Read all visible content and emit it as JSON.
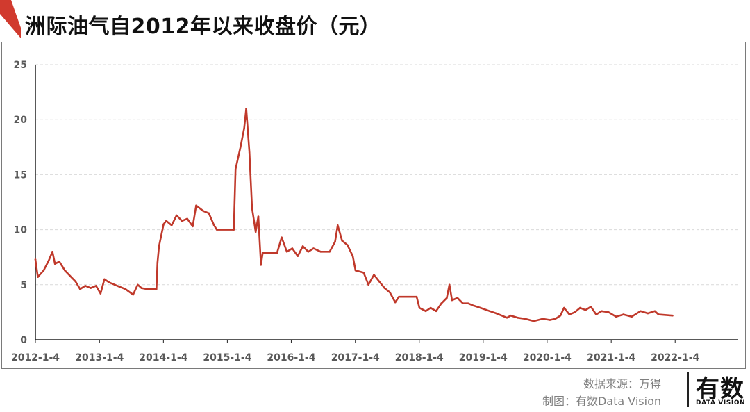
{
  "title": "洲际油气自2012年以来收盘价（元）",
  "footer": {
    "source": "数据来源：万得",
    "credit": "制图：有数Data Vision"
  },
  "logo": {
    "main": "有数",
    "sub": "DATA VISION"
  },
  "colors": {
    "line": "#c0392b",
    "accent": "#d13a2e",
    "grid": "#d9d9d9",
    "axis": "#222222",
    "tick_text": "#595959"
  },
  "chart_data": {
    "type": "line",
    "title": "洲际油气自2012年以来收盘价（元）",
    "xlabel": "",
    "ylabel": "",
    "ylim": [
      0,
      25
    ],
    "yticks": [
      0,
      5,
      10,
      15,
      20,
      25
    ],
    "xlim": [
      "2012-01-04",
      "2022-12-30"
    ],
    "xticks": [
      "2012-1-4",
      "2013-1-4",
      "2014-1-4",
      "2015-1-4",
      "2016-1-4",
      "2017-1-4",
      "2018-1-4",
      "2019-1-4",
      "2020-1-4",
      "2021-1-4",
      "2022-1-4"
    ],
    "grid": "horizontal dashed",
    "series": [
      {
        "values": [
          [
            "2012-01-04",
            7.3
          ],
          [
            "2012-01-18",
            5.7
          ],
          [
            "2012-02-20",
            6.3
          ],
          [
            "2012-03-20",
            7.2
          ],
          [
            "2012-04-10",
            8.0
          ],
          [
            "2012-04-25",
            6.9
          ],
          [
            "2012-05-20",
            7.1
          ],
          [
            "2012-06-20",
            6.3
          ],
          [
            "2012-07-20",
            5.8
          ],
          [
            "2012-08-20",
            5.3
          ],
          [
            "2012-09-15",
            4.6
          ],
          [
            "2012-10-15",
            4.9
          ],
          [
            "2012-11-15",
            4.7
          ],
          [
            "2012-12-15",
            4.9
          ],
          [
            "2013-01-10",
            4.2
          ],
          [
            "2013-02-01",
            5.5
          ],
          [
            "2013-03-01",
            5.2
          ],
          [
            "2013-04-01",
            5.0
          ],
          [
            "2013-05-01",
            4.8
          ],
          [
            "2013-06-01",
            4.6
          ],
          [
            "2013-07-15",
            4.1
          ],
          [
            "2013-08-10",
            5.0
          ],
          [
            "2013-09-01",
            4.7
          ],
          [
            "2013-10-01",
            4.6
          ],
          [
            "2013-11-25",
            4.6
          ],
          [
            "2013-12-01",
            7.0
          ],
          [
            "2013-12-10",
            8.5
          ],
          [
            "2014-01-05",
            10.5
          ],
          [
            "2014-01-20",
            10.8
          ],
          [
            "2014-02-20",
            10.4
          ],
          [
            "2014-03-20",
            11.3
          ],
          [
            "2014-04-20",
            10.8
          ],
          [
            "2014-05-20",
            11.0
          ],
          [
            "2014-06-20",
            10.3
          ],
          [
            "2014-07-10",
            12.2
          ],
          [
            "2014-08-20",
            11.7
          ],
          [
            "2014-09-20",
            11.5
          ],
          [
            "2014-10-20",
            10.4
          ],
          [
            "2014-11-05",
            10.0
          ],
          [
            "2015-02-10",
            10.0
          ],
          [
            "2015-02-20",
            15.5
          ],
          [
            "2015-03-20",
            17.5
          ],
          [
            "2015-04-10",
            19.2
          ],
          [
            "2015-04-22",
            21.0
          ],
          [
            "2015-05-10",
            17.0
          ],
          [
            "2015-05-25",
            12.0
          ],
          [
            "2015-06-15",
            9.8
          ],
          [
            "2015-06-30",
            11.2
          ],
          [
            "2015-07-15",
            6.8
          ],
          [
            "2015-07-25",
            7.9
          ],
          [
            "2015-10-15",
            7.9
          ],
          [
            "2015-11-10",
            9.3
          ],
          [
            "2015-12-10",
            8.0
          ],
          [
            "2016-01-10",
            8.3
          ],
          [
            "2016-02-10",
            7.6
          ],
          [
            "2016-03-10",
            8.5
          ],
          [
            "2016-04-10",
            8.0
          ],
          [
            "2016-05-10",
            8.3
          ],
          [
            "2016-06-20",
            8.0
          ],
          [
            "2016-08-10",
            8.0
          ],
          [
            "2016-09-10",
            8.9
          ],
          [
            "2016-09-25",
            10.4
          ],
          [
            "2016-10-20",
            9.0
          ],
          [
            "2016-11-20",
            8.6
          ],
          [
            "2016-12-20",
            7.6
          ],
          [
            "2017-01-05",
            6.3
          ],
          [
            "2017-02-20",
            6.1
          ],
          [
            "2017-03-20",
            5.0
          ],
          [
            "2017-04-20",
            5.9
          ],
          [
            "2017-05-20",
            5.3
          ],
          [
            "2017-06-20",
            4.7
          ],
          [
            "2017-07-20",
            4.3
          ],
          [
            "2017-08-20",
            3.4
          ],
          [
            "2017-09-10",
            3.9
          ],
          [
            "2017-12-20",
            3.9
          ],
          [
            "2018-01-05",
            2.9
          ],
          [
            "2018-02-10",
            2.6
          ],
          [
            "2018-03-10",
            2.9
          ],
          [
            "2018-04-10",
            2.6
          ],
          [
            "2018-05-10",
            3.3
          ],
          [
            "2018-06-10",
            3.8
          ],
          [
            "2018-06-25",
            5.0
          ],
          [
            "2018-07-10",
            3.6
          ],
          [
            "2018-08-10",
            3.8
          ],
          [
            "2018-09-10",
            3.3
          ],
          [
            "2018-10-10",
            3.3
          ],
          [
            "2018-11-10",
            3.1
          ],
          [
            "2018-12-20",
            2.9
          ],
          [
            "2019-02-10",
            2.6
          ],
          [
            "2019-03-20",
            2.4
          ],
          [
            "2019-05-20",
            2.0
          ],
          [
            "2019-06-10",
            2.2
          ],
          [
            "2019-07-20",
            2.0
          ],
          [
            "2019-09-01",
            1.9
          ],
          [
            "2019-10-20",
            1.7
          ],
          [
            "2019-12-10",
            1.9
          ],
          [
            "2020-01-20",
            1.8
          ],
          [
            "2020-02-20",
            1.9
          ],
          [
            "2020-03-20",
            2.2
          ],
          [
            "2020-04-10",
            2.9
          ],
          [
            "2020-05-10",
            2.3
          ],
          [
            "2020-06-10",
            2.5
          ],
          [
            "2020-07-10",
            2.9
          ],
          [
            "2020-08-10",
            2.7
          ],
          [
            "2020-09-10",
            3.0
          ],
          [
            "2020-10-10",
            2.3
          ],
          [
            "2020-11-10",
            2.6
          ],
          [
            "2020-12-20",
            2.5
          ],
          [
            "2021-02-01",
            2.1
          ],
          [
            "2021-03-15",
            2.3
          ],
          [
            "2021-05-01",
            2.1
          ],
          [
            "2021-06-20",
            2.6
          ],
          [
            "2021-08-01",
            2.4
          ],
          [
            "2021-09-10",
            2.6
          ],
          [
            "2021-10-01",
            2.3
          ],
          [
            "2021-12-20",
            2.2
          ]
        ]
      }
    ]
  }
}
